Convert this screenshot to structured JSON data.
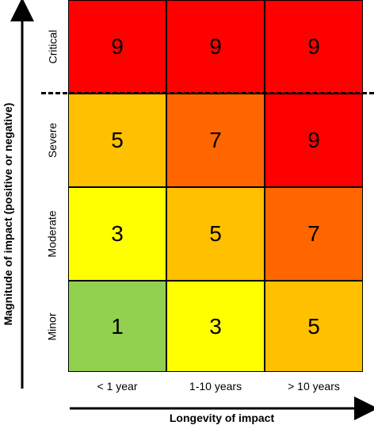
{
  "y_axis_title": "Magnitude of impact (positive or negative)",
  "x_axis_title": "Longevity of impact",
  "row_labels": [
    "Critical",
    "Severe",
    "Moderate",
    "Minor"
  ],
  "col_labels": [
    "< 1 year",
    "1-10 years",
    "> 10 years"
  ],
  "matrix": [
    [
      9,
      9,
      9
    ],
    [
      5,
      7,
      9
    ],
    [
      3,
      5,
      7
    ],
    [
      1,
      3,
      5
    ]
  ],
  "score_colors": {
    "1": "#92d050",
    "3": "#ffff00",
    "5": "#ffc000",
    "7": "#ff6600",
    "9": "#ff0000"
  }
}
